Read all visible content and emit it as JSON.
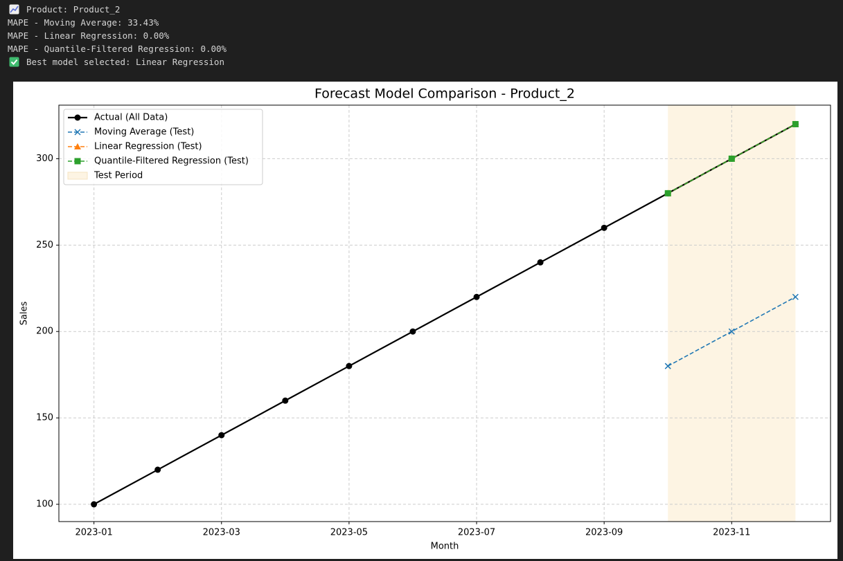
{
  "console": [
    "Product: Product_2",
    "MAPE - Moving Average: 33.43%",
    "MAPE - Linear Regression: 0.00%",
    "MAPE - Quantile-Filtered Regression: 0.00%",
    "Best model selected: Linear Regression"
  ],
  "chart_data": {
    "type": "line",
    "title": "Forecast Model Comparison - Product_2",
    "x_label": "Month",
    "y_label": "Sales",
    "x": [
      "2023-01",
      "2023-02",
      "2023-03",
      "2023-04",
      "2023-05",
      "2023-06",
      "2023-07",
      "2023-08",
      "2023-09",
      "2023-10",
      "2023-11",
      "2023-12"
    ],
    "xticks": [
      "2023-01",
      "2023-03",
      "2023-05",
      "2023-07",
      "2023-09",
      "2023-11"
    ],
    "ylim": [
      90,
      331
    ],
    "yticks": [
      100,
      150,
      200,
      250,
      300
    ],
    "grid": true,
    "legend": "upper left",
    "series": [
      {
        "name": "Actual (All Data)",
        "color": "#000000",
        "marker": "o",
        "dashed": false,
        "values": [
          100,
          120,
          140,
          160,
          180,
          200,
          220,
          240,
          260,
          280,
          300,
          320
        ]
      },
      {
        "name": "Moving Average (Test)",
        "color": "#1f77b4",
        "marker": "x",
        "dashed": true,
        "values": [
          null,
          null,
          null,
          null,
          null,
          null,
          null,
          null,
          null,
          180,
          200,
          220
        ]
      },
      {
        "name": "Linear Regression (Test)",
        "color": "#ff7f0e",
        "marker": "^",
        "dashed": true,
        "values": [
          null,
          null,
          null,
          null,
          null,
          null,
          null,
          null,
          null,
          280,
          300,
          320
        ]
      },
      {
        "name": "Quantile-Filtered Regression (Test)",
        "color": "#2ca02c",
        "marker": "s",
        "dashed": true,
        "values": [
          null,
          null,
          null,
          null,
          null,
          null,
          null,
          null,
          null,
          280,
          300,
          320
        ]
      }
    ],
    "span": {
      "name": "Test Period",
      "color": "#fdf4e3",
      "x": [
        "2023-10",
        "2023-12"
      ]
    }
  }
}
